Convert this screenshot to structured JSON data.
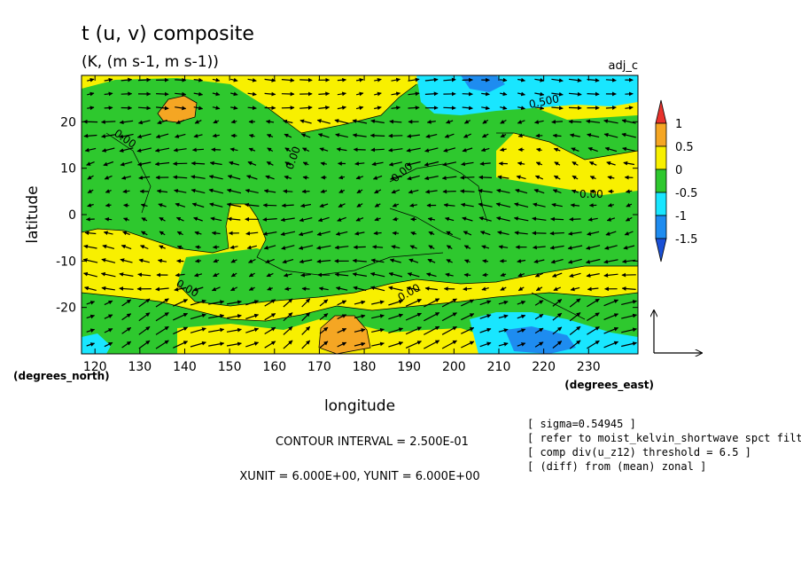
{
  "chart_data": {
    "type": "heatmap",
    "title": "t (u, v) composite",
    "subtitle": "(K, (m s-1, m s-1))",
    "run_label": "adj_c",
    "xlabel": "longitude",
    "ylabel": "latitude",
    "x_unit_label": "(degrees_east)",
    "y_unit_label": "(degrees_north)",
    "x_ticks": [
      120,
      130,
      140,
      150,
      160,
      170,
      180,
      190,
      200,
      210,
      220,
      230
    ],
    "y_ticks": [
      20,
      10,
      0,
      -10,
      -20
    ],
    "xlim": [
      117,
      241
    ],
    "ylim": [
      -30,
      30
    ],
    "contour_labels": [
      "0.00",
      "0.00",
      "0.00",
      "0.00",
      "0.00",
      "0.00",
      "0.500"
    ],
    "colorbar": {
      "levels": [
        1,
        0.5,
        0,
        -0.5,
        -1,
        -1.5
      ],
      "colors": [
        "#e8322c",
        "#f5a623",
        "#f8f000",
        "#2ec82e",
        "#19e6ff",
        "#1e8cf0",
        "#1a50d6"
      ]
    },
    "footer": {
      "contour_interval": "CONTOUR INTERVAL = 2.500E-01",
      "units": "XUNIT = 6.000E+00, YUNIT = 6.000E+00"
    },
    "notes": [
      "[ sigma=0.54945 ]",
      "[ refer to moist_kelvin_shortwave spct filte",
      "[ comp div(u_z12) threshold = 6.5 ]",
      "[ (diff) from (mean) zonal ]"
    ]
  }
}
